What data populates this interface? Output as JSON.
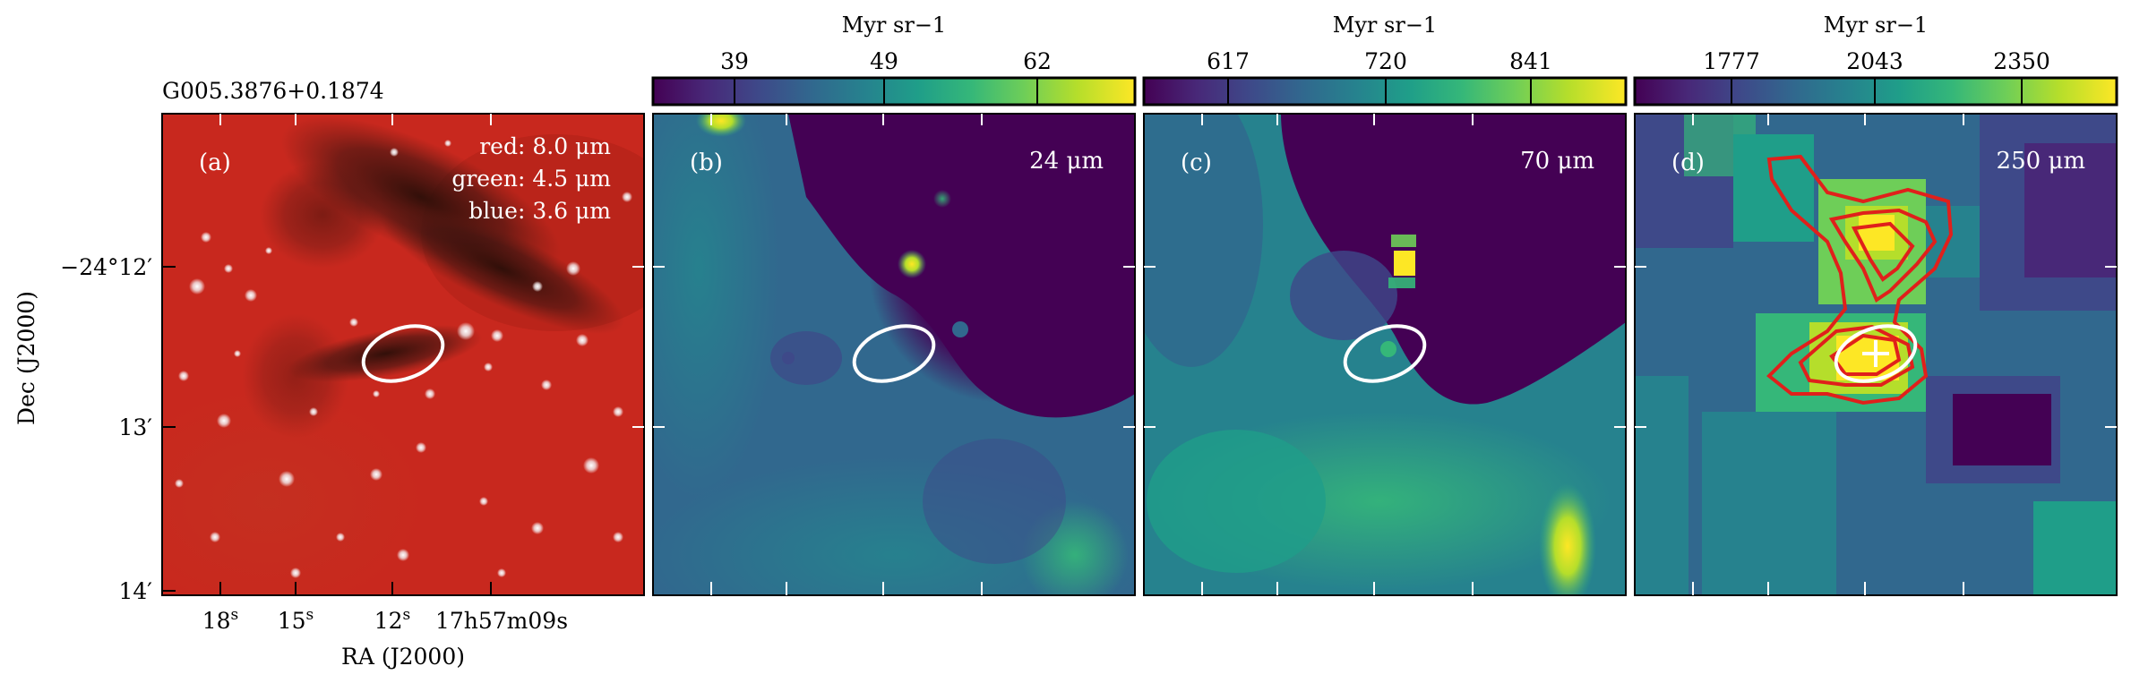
{
  "figure": {
    "source_title": "G005.3876+0.1874",
    "axes": {
      "ra_label": "RA (J2000)",
      "dec_label": "Dec (J2000)",
      "ra_ticks": [
        {
          "main": "18",
          "sup": "s"
        },
        {
          "main": "15",
          "sup": "s"
        },
        {
          "main": "12",
          "sup": "s"
        },
        {
          "main": "17h57m09s",
          "sup": ""
        }
      ],
      "dec_ticks": [
        "−24°12′",
        "13′",
        "14′"
      ]
    },
    "panels": [
      {
        "id": "a",
        "label": "(a)",
        "band_lines": [
          "red: 8.0 μm",
          "green: 4.5 μm",
          "blue: 3.6 μm"
        ]
      },
      {
        "id": "b",
        "label": "(b)",
        "band": "24 μm",
        "colorbar": {
          "unit": "Myr sr−1",
          "ticks": [
            "39",
            "49",
            "62"
          ]
        }
      },
      {
        "id": "c",
        "label": "(c)",
        "band": "70 μm",
        "colorbar": {
          "unit": "Myr sr−1",
          "ticks": [
            "617",
            "720",
            "841"
          ]
        }
      },
      {
        "id": "d",
        "label": "(d)",
        "band": "250 μm",
        "colorbar": {
          "unit": "Myr sr−1",
          "ticks": [
            "1777",
            "2043",
            "2350"
          ]
        }
      }
    ],
    "colors": {
      "viridis": [
        "#440154",
        "#482878",
        "#3e4989",
        "#31688e",
        "#26828e",
        "#1f9e89",
        "#35b779",
        "#6ece58",
        "#b5de2b",
        "#fde725"
      ],
      "contour": "#e0201b",
      "ellipse": "#ffffff",
      "marker": "#ffffff"
    }
  }
}
